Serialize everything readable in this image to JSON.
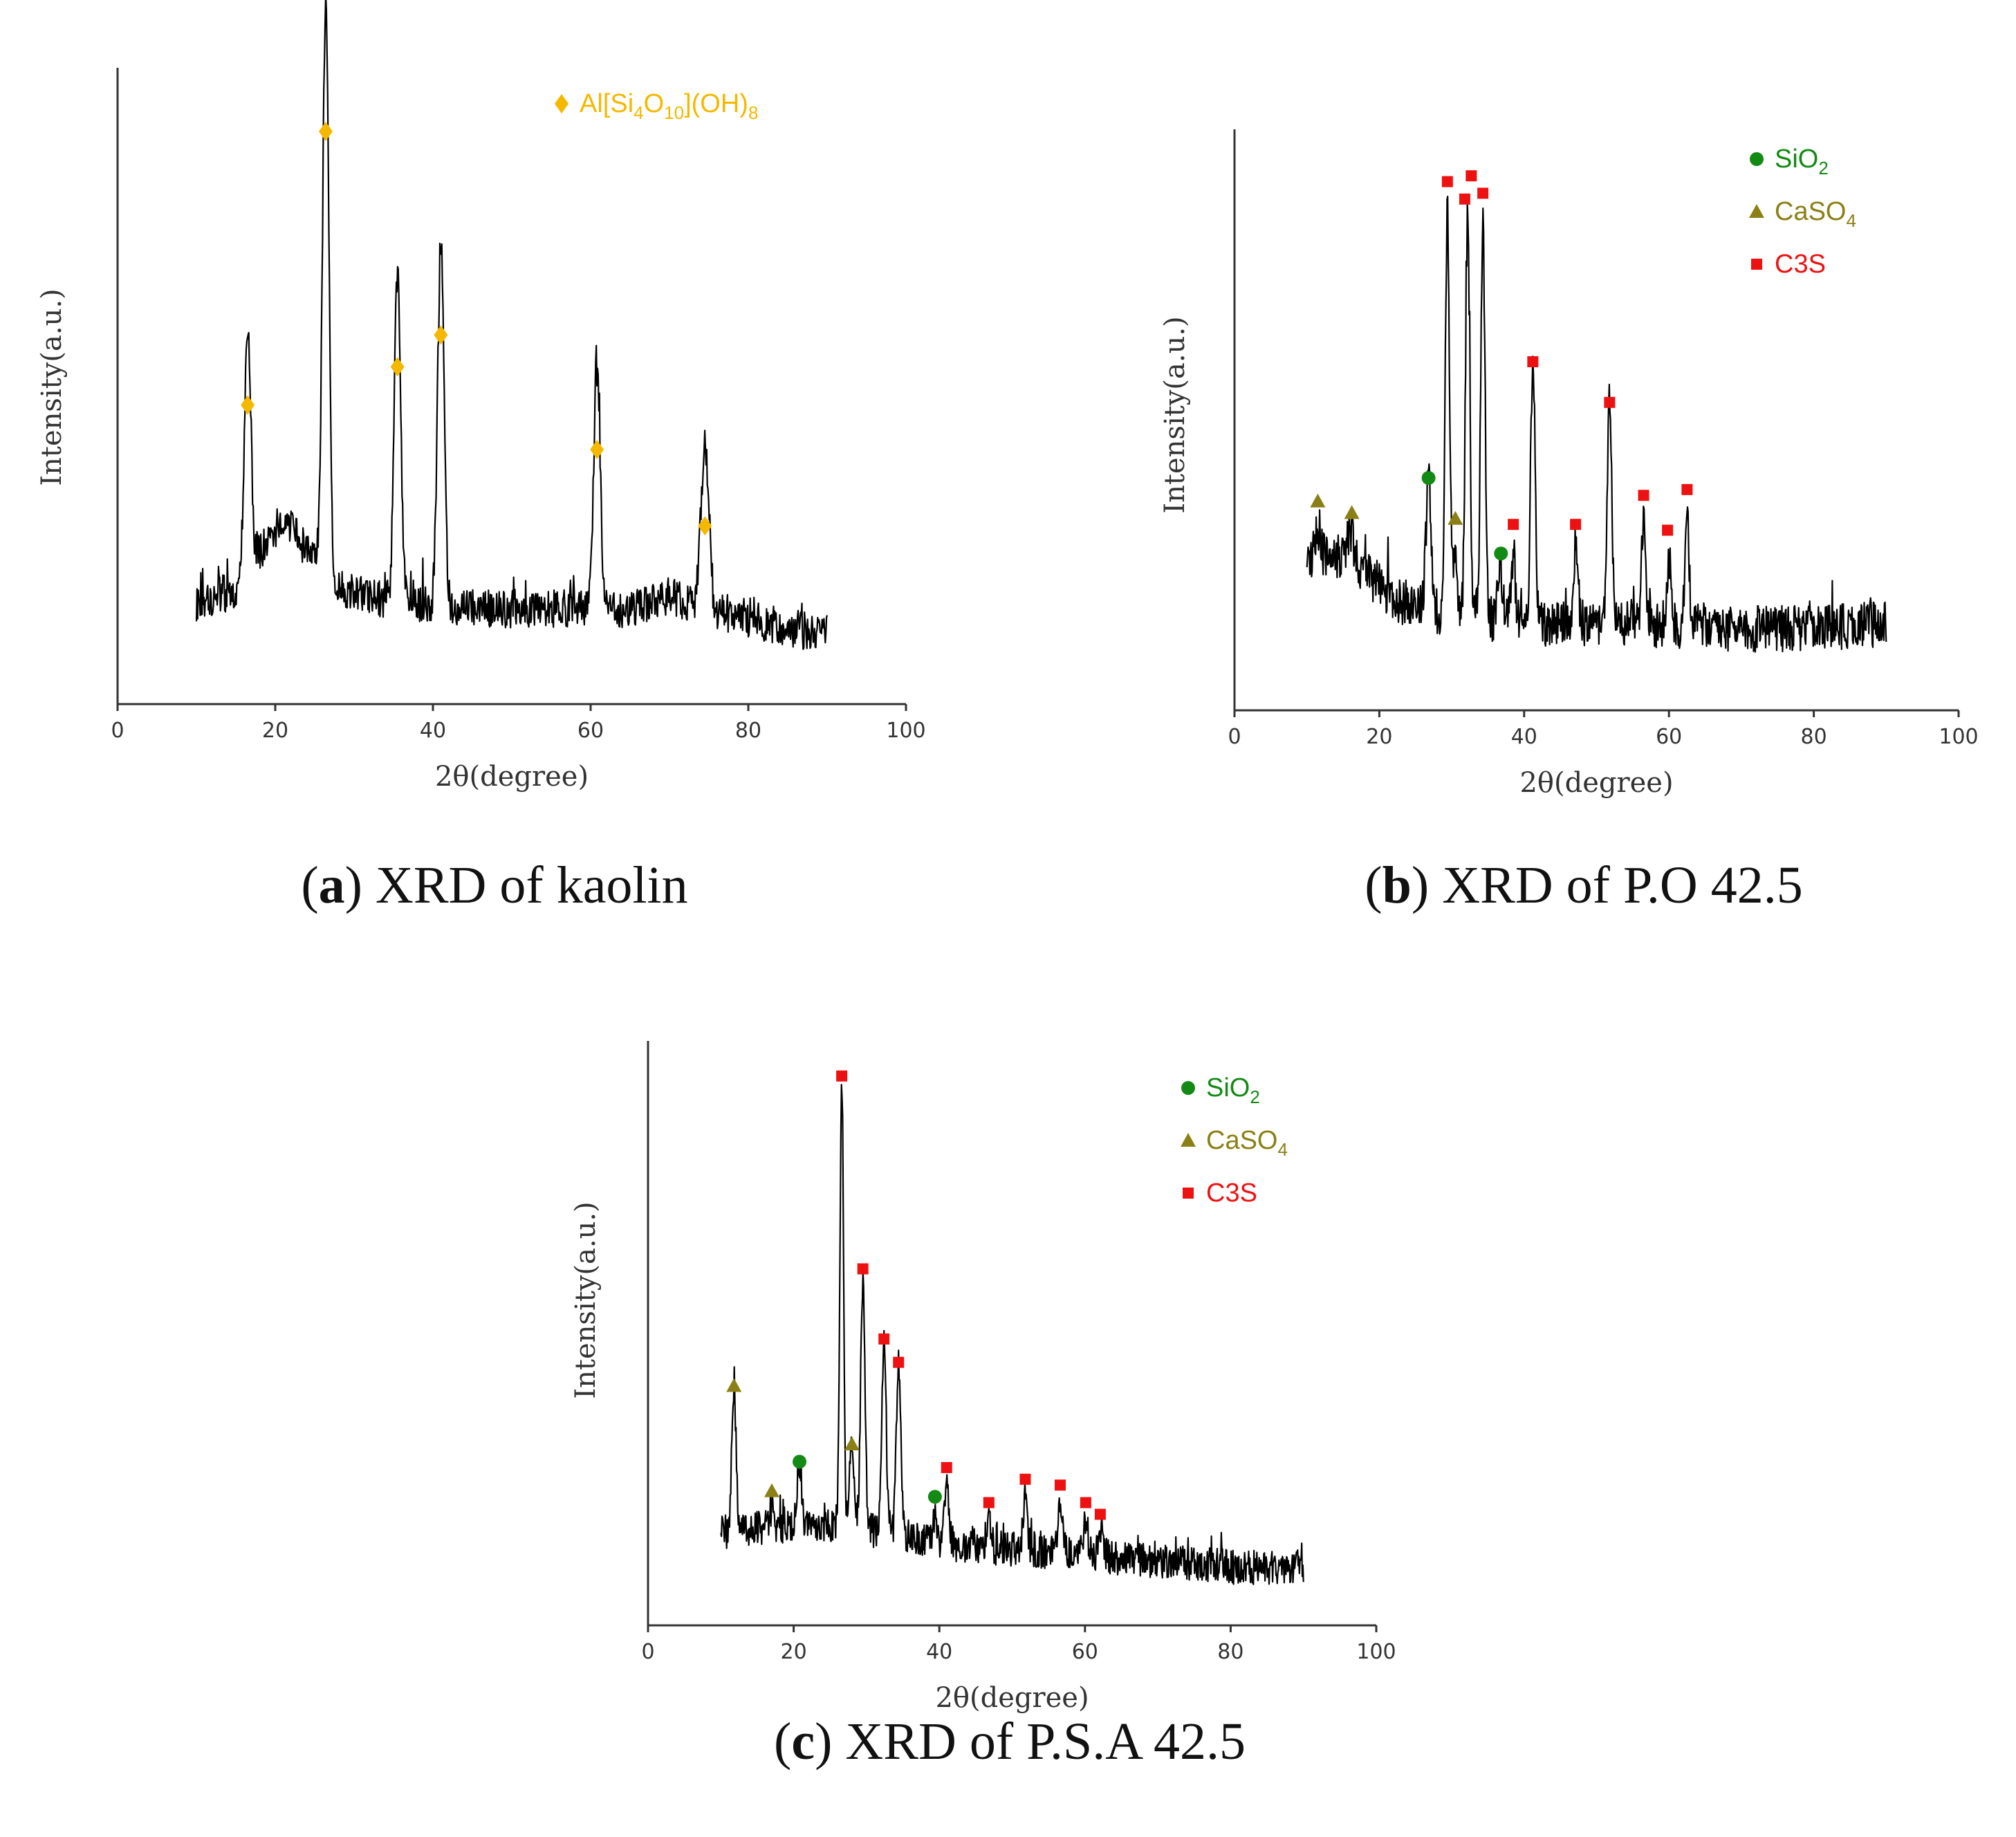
{
  "figure": {
    "captions": [
      {
        "letter": "a",
        "text": ") XRD of kaolin"
      },
      {
        "letter": "b",
        "text": ") XRD of P.O 42.5"
      },
      {
        "letter": "c",
        "text": ") XRD of P.S.A 42.5"
      }
    ]
  },
  "colors": {
    "kaolin_marker": "#F5B800",
    "sio2": "#138A13",
    "caso4": "#8B8015",
    "c3s": "#EE1111",
    "trace": "#000000",
    "axis": "#333333"
  },
  "chart_data": [
    {
      "id": "a",
      "type": "line",
      "title": "XRD of kaolin",
      "xlabel": "2θ(degree)",
      "ylabel": "Intensity(a.u.)",
      "xlim": [
        0,
        100
      ],
      "ylim": [
        0,
        100
      ],
      "xticks": [
        0,
        20,
        40,
        60,
        80,
        100
      ],
      "grid": false,
      "legend_position": "top-center",
      "legend": [
        {
          "label": "Al[Si4O10](OH)8",
          "base": "Al[Si",
          "parts": [
            [
              "4",
              "sub"
            ],
            [
              "O",
              ""
            ],
            [
              "10",
              "sub"
            ],
            [
              "](OH)",
              ""
            ],
            [
              "8",
              "sub"
            ]
          ],
          "marker": "diamond",
          "color": "#F5B800"
        }
      ],
      "series": {
        "name": "kaolin",
        "x_range": [
          10,
          90
        ],
        "baseline": [
          [
            10,
            16
          ],
          [
            15,
            18
          ],
          [
            18,
            24
          ],
          [
            21,
            29
          ],
          [
            24,
            24
          ],
          [
            28,
            18
          ],
          [
            35,
            16
          ],
          [
            45,
            15
          ],
          [
            55,
            15
          ],
          [
            65,
            15
          ],
          [
            70,
            17
          ],
          [
            75,
            15
          ],
          [
            85,
            12
          ],
          [
            90,
            11
          ]
        ],
        "noise": 3,
        "peaks": [
          {
            "x": 16.5,
            "y": 39,
            "width": 0.4
          },
          {
            "x": 26.4,
            "y": 89,
            "width": 0.4
          },
          {
            "x": 35.5,
            "y": 52,
            "width": 0.4
          },
          {
            "x": 41.0,
            "y": 57,
            "width": 0.4
          },
          {
            "x": 60.8,
            "y": 38,
            "width": 0.4
          },
          {
            "x": 74.5,
            "y": 25,
            "width": 0.5
          }
        ]
      },
      "markers": [
        {
          "phase": "Al[Si4O10](OH)8",
          "shape": "diamond",
          "x": 16.5,
          "y": 47
        },
        {
          "phase": "Al[Si4O10](OH)8",
          "shape": "diamond",
          "x": 26.4,
          "y": 90
        },
        {
          "phase": "Al[Si4O10](OH)8",
          "shape": "diamond",
          "x": 35.5,
          "y": 53
        },
        {
          "phase": "Al[Si4O10](OH)8",
          "shape": "diamond",
          "x": 41.0,
          "y": 58
        },
        {
          "phase": "Al[Si4O10](OH)8",
          "shape": "diamond",
          "x": 60.8,
          "y": 40
        },
        {
          "phase": "Al[Si4O10](OH)8",
          "shape": "diamond",
          "x": 74.5,
          "y": 28
        }
      ]
    },
    {
      "id": "b",
      "type": "line",
      "title": "XRD of P.O 42.5",
      "xlabel": "2θ(degree)",
      "ylabel": "Intensity(a.u.)",
      "xlim": [
        0,
        100
      ],
      "ylim": [
        0,
        100
      ],
      "xticks": [
        0,
        20,
        40,
        60,
        80,
        100
      ],
      "grid": false,
      "legend_position": "top-right",
      "legend": [
        {
          "label": "SiO2",
          "base": "SiO",
          "parts": [
            [
              "2",
              "sub"
            ]
          ],
          "marker": "circle",
          "color": "#138A13"
        },
        {
          "label": "CaSO4",
          "base": "CaSO",
          "parts": [
            [
              "4",
              "sub"
            ]
          ],
          "marker": "triangle",
          "color": "#8B8015"
        },
        {
          "label": "C3S",
          "base": "C3S",
          "parts": [],
          "marker": "square",
          "color": "#EE1111"
        }
      ],
      "series": {
        "name": "P.O 42.5",
        "x_range": [
          10,
          90
        ],
        "baseline": [
          [
            10,
            25
          ],
          [
            15,
            27
          ],
          [
            18,
            24
          ],
          [
            22,
            19
          ],
          [
            28,
            17
          ],
          [
            40,
            15
          ],
          [
            55,
            15
          ],
          [
            70,
            14
          ],
          [
            80,
            14
          ],
          [
            90,
            15
          ]
        ],
        "noise": 4,
        "peaks": [
          {
            "x": 11.5,
            "y": 6,
            "width": 0.4
          },
          {
            "x": 16.0,
            "y": 5,
            "width": 0.4
          },
          {
            "x": 26.8,
            "y": 22,
            "width": 0.35
          },
          {
            "x": 29.4,
            "y": 69,
            "width": 0.3
          },
          {
            "x": 30.5,
            "y": 8,
            "width": 0.3
          },
          {
            "x": 32.2,
            "y": 68,
            "width": 0.3
          },
          {
            "x": 34.3,
            "y": 67,
            "width": 0.3
          },
          {
            "x": 36.7,
            "y": 9,
            "width": 0.3
          },
          {
            "x": 38.5,
            "y": 12,
            "width": 0.3
          },
          {
            "x": 41.2,
            "y": 45,
            "width": 0.3
          },
          {
            "x": 47.1,
            "y": 14,
            "width": 0.3
          },
          {
            "x": 51.8,
            "y": 38,
            "width": 0.3
          },
          {
            "x": 56.5,
            "y": 19,
            "width": 0.3
          },
          {
            "x": 60.0,
            "y": 12,
            "width": 0.3
          },
          {
            "x": 62.5,
            "y": 19,
            "width": 0.3
          }
        ]
      },
      "markers": [
        {
          "phase": "CaSO4",
          "shape": "triangle",
          "x": 11.5,
          "y": 36
        },
        {
          "phase": "CaSO4",
          "shape": "triangle",
          "x": 16.2,
          "y": 34
        },
        {
          "phase": "SiO2",
          "shape": "circle",
          "x": 26.8,
          "y": 40
        },
        {
          "phase": "C3S",
          "shape": "square",
          "x": 29.4,
          "y": 91
        },
        {
          "phase": "CaSO4",
          "shape": "triangle",
          "x": 30.5,
          "y": 33
        },
        {
          "phase": "C3S",
          "shape": "square",
          "x": 31.8,
          "y": 88
        },
        {
          "phase": "C3S",
          "shape": "square",
          "x": 32.7,
          "y": 92
        },
        {
          "phase": "C3S",
          "shape": "square",
          "x": 34.3,
          "y": 89
        },
        {
          "phase": "SiO2",
          "shape": "circle",
          "x": 36.8,
          "y": 27
        },
        {
          "phase": "C3S",
          "shape": "square",
          "x": 38.5,
          "y": 32
        },
        {
          "phase": "C3S",
          "shape": "square",
          "x": 41.2,
          "y": 60
        },
        {
          "phase": "C3S",
          "shape": "square",
          "x": 47.1,
          "y": 32
        },
        {
          "phase": "C3S",
          "shape": "square",
          "x": 51.8,
          "y": 53
        },
        {
          "phase": "C3S",
          "shape": "square",
          "x": 56.5,
          "y": 37
        },
        {
          "phase": "C3S",
          "shape": "square",
          "x": 59.8,
          "y": 31
        },
        {
          "phase": "C3S",
          "shape": "square",
          "x": 62.5,
          "y": 38
        }
      ]
    },
    {
      "id": "c",
      "type": "line",
      "title": "XRD of P.S.A 42.5",
      "xlabel": "2θ(degree)",
      "ylabel": "Intensity(a.u.)",
      "xlim": [
        0,
        100
      ],
      "ylim": [
        0,
        100
      ],
      "xticks": [
        0,
        20,
        40,
        60,
        80,
        100
      ],
      "grid": false,
      "legend_position": "top-right",
      "legend": [
        {
          "label": "SiO2",
          "base": "SiO",
          "parts": [
            [
              "2",
              "sub"
            ]
          ],
          "marker": "circle",
          "color": "#138A13"
        },
        {
          "label": "CaSO4",
          "base": "CaSO",
          "parts": [
            [
              "4",
              "sub"
            ]
          ],
          "marker": "triangle",
          "color": "#8B8015"
        },
        {
          "label": "C3S",
          "base": "C3S",
          "parts": [],
          "marker": "square",
          "color": "#EE1111"
        }
      ],
      "series": {
        "name": "P.S.A 42.5",
        "x_range": [
          10,
          90
        ],
        "baseline": [
          [
            10,
            16
          ],
          [
            20,
            17
          ],
          [
            26,
            17
          ],
          [
            32,
            16
          ],
          [
            40,
            14
          ],
          [
            50,
            13
          ],
          [
            60,
            12
          ],
          [
            70,
            11
          ],
          [
            80,
            10
          ],
          [
            90,
            10
          ]
        ],
        "noise": 3,
        "peaks": [
          {
            "x": 11.8,
            "y": 24,
            "width": 0.3
          },
          {
            "x": 17.0,
            "y": 3,
            "width": 0.3
          },
          {
            "x": 20.8,
            "y": 10,
            "width": 0.3
          },
          {
            "x": 26.6,
            "y": 76,
            "width": 0.25
          },
          {
            "x": 28.0,
            "y": 15,
            "width": 0.3
          },
          {
            "x": 29.5,
            "y": 43,
            "width": 0.3
          },
          {
            "x": 32.4,
            "y": 33,
            "width": 0.3
          },
          {
            "x": 34.4,
            "y": 29,
            "width": 0.3
          },
          {
            "x": 39.4,
            "y": 5,
            "width": 0.3
          },
          {
            "x": 41.0,
            "y": 10,
            "width": 0.3
          },
          {
            "x": 46.8,
            "y": 6,
            "width": 0.3
          },
          {
            "x": 51.8,
            "y": 9,
            "width": 0.3
          },
          {
            "x": 56.6,
            "y": 8,
            "width": 0.3
          },
          {
            "x": 60.1,
            "y": 6,
            "width": 0.3
          },
          {
            "x": 62.1,
            "y": 5,
            "width": 0.3
          }
        ]
      },
      "markers": [
        {
          "phase": "CaSO4",
          "shape": "triangle",
          "x": 11.8,
          "y": 41
        },
        {
          "phase": "CaSO4",
          "shape": "triangle",
          "x": 17.0,
          "y": 23
        },
        {
          "phase": "SiO2",
          "shape": "circle",
          "x": 20.8,
          "y": 28
        },
        {
          "phase": "C3S",
          "shape": "square",
          "x": 26.6,
          "y": 94
        },
        {
          "phase": "CaSO4",
          "shape": "triangle",
          "x": 28.0,
          "y": 31
        },
        {
          "phase": "C3S",
          "shape": "square",
          "x": 29.5,
          "y": 61
        },
        {
          "phase": "C3S",
          "shape": "square",
          "x": 32.4,
          "y": 49
        },
        {
          "phase": "C3S",
          "shape": "square",
          "x": 34.4,
          "y": 45
        },
        {
          "phase": "SiO2",
          "shape": "circle",
          "x": 39.4,
          "y": 22
        },
        {
          "phase": "C3S",
          "shape": "square",
          "x": 41.0,
          "y": 27
        },
        {
          "phase": "C3S",
          "shape": "square",
          "x": 46.8,
          "y": 21
        },
        {
          "phase": "C3S",
          "shape": "square",
          "x": 51.8,
          "y": 25
        },
        {
          "phase": "C3S",
          "shape": "square",
          "x": 56.6,
          "y": 24
        },
        {
          "phase": "C3S",
          "shape": "square",
          "x": 60.1,
          "y": 21
        },
        {
          "phase": "C3S",
          "shape": "square",
          "x": 62.1,
          "y": 19
        }
      ]
    }
  ]
}
